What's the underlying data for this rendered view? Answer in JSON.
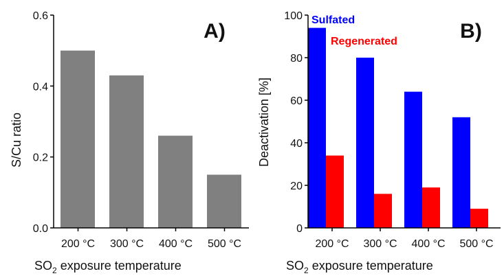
{
  "chart_data": [
    {
      "type": "bar",
      "panel_label": "A)",
      "categories": [
        "200 °C",
        "300 °C",
        "400 °C",
        "500 °C"
      ],
      "values": [
        0.5,
        0.43,
        0.26,
        0.15
      ],
      "xlabel_main": "SO",
      "xlabel_sub": "2",
      "xlabel_rest": " exposure temperature",
      "ylabel": "S/Cu ratio",
      "ylim": [
        0,
        0.6
      ],
      "yticks": [
        "0.0",
        "0.2",
        "0.4",
        "0.6"
      ],
      "color": "#808080",
      "grid": false
    },
    {
      "type": "bar",
      "panel_label": "B)",
      "categories": [
        "200 °C",
        "300 °C",
        "400 °C",
        "500 °C"
      ],
      "series": [
        {
          "name": "Sulfated",
          "values": [
            94,
            80,
            64,
            52
          ],
          "color": "#0000ff"
        },
        {
          "name": "Regenerated",
          "values": [
            34,
            16,
            19,
            9
          ],
          "color": "#ff0000"
        }
      ],
      "xlabel_main": "SO",
      "xlabel_sub": "2",
      "xlabel_rest": " exposure temperature",
      "ylabel": "Deactivation [%]",
      "ylim": [
        0,
        100
      ],
      "yticks": [
        "0",
        "20",
        "40",
        "60",
        "80",
        "100"
      ],
      "legend_placement": "top-left",
      "grid": false
    }
  ]
}
